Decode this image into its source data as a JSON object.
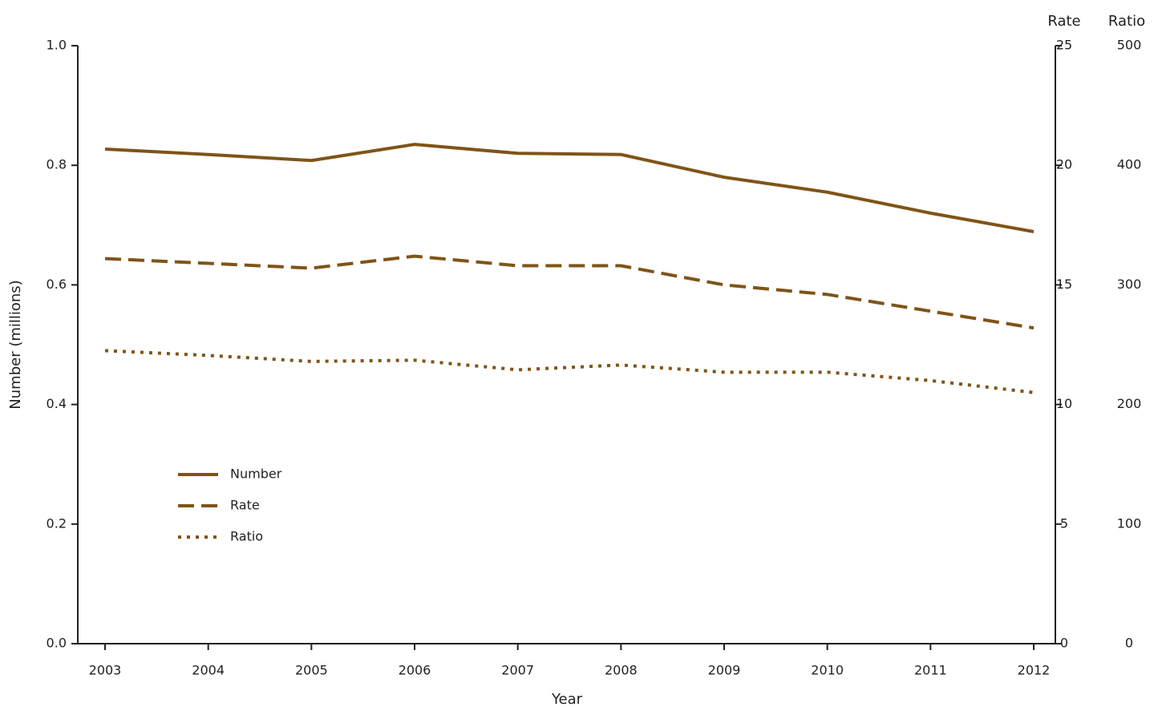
{
  "chart_data": {
    "type": "line",
    "x_label": "Year",
    "y_label": "Number (millions)",
    "y2_label": "Rate",
    "y3_label": "Ratio",
    "categories": [
      "2003",
      "2004",
      "2005",
      "2006",
      "2007",
      "2008",
      "2009",
      "2010",
      "2011",
      "2012"
    ],
    "ylim": [
      0,
      1
    ],
    "yticks": [
      {
        "value": 0,
        "label": "0.0"
      },
      0.2,
      0.4,
      0.6,
      0.8,
      {
        "value": 1,
        "label": "1.0"
      }
    ],
    "y2lim": [
      0,
      25
    ],
    "y2ticks": [
      0,
      5,
      10,
      15,
      20,
      25
    ],
    "y3lim": [
      0,
      500
    ],
    "y3ticks": [
      0,
      100,
      200,
      300,
      400,
      500
    ],
    "series": [
      {
        "name": "Number",
        "color": "#7f5417",
        "dash": "solid",
        "axis": "y",
        "values": [
          0.827,
          0.818,
          0.808,
          0.835,
          0.82,
          0.818,
          0.78,
          0.755,
          0.72,
          0.689
        ]
      },
      {
        "name": "Rate",
        "color": "#7f5417",
        "dash": "dashed",
        "axis": "y2",
        "values": [
          16.1,
          15.9,
          15.7,
          16.2,
          15.8,
          15.8,
          15.0,
          14.6,
          13.9,
          13.2
        ]
      },
      {
        "name": "Ratio",
        "color": "#7f5417",
        "dash": "dotted",
        "axis": "y3",
        "values": [
          245,
          241,
          236,
          237,
          229,
          233,
          227,
          227,
          220,
          210
        ]
      }
    ]
  }
}
